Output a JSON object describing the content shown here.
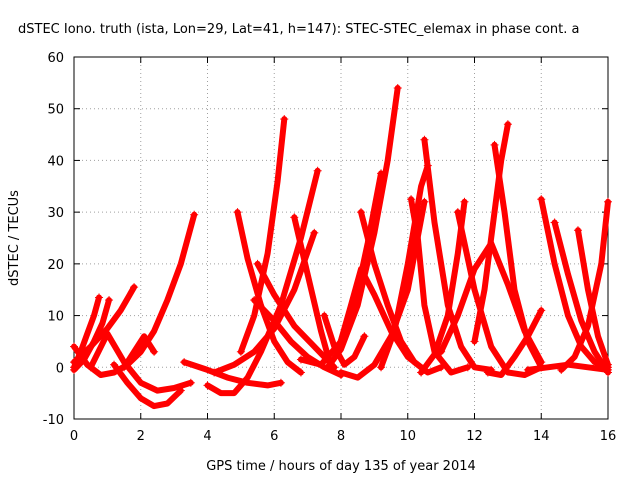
{
  "chart_data": {
    "type": "scatter",
    "title": "dSTEC Iono. truth (ista, Lon=29, Lat=41, h=147): STEC-STEC_elemax in phase cont. a",
    "xlabel": "GPS time / hours of day 135 of year 2014",
    "ylabel": "dSTEC  / TECUs",
    "xlim": [
      0,
      16
    ],
    "ylim": [
      -10,
      60
    ],
    "xticks": [
      "0",
      "2",
      "4",
      "6",
      "8",
      "10",
      "12",
      "14",
      "16"
    ],
    "yticks": [
      "-10",
      "0",
      "10",
      "20",
      "30",
      "40",
      "50",
      "60"
    ],
    "grid": true,
    "marker": "plus",
    "color": "#ff0000",
    "series": [
      {
        "x": [
          0.0,
          0.4,
          0.8,
          1.2,
          1.6,
          2.0,
          2.4,
          2.8,
          3.2,
          3.6
        ],
        "y": [
          4.0,
          0.5,
          -1.5,
          -1.0,
          0.5,
          3.0,
          7.0,
          13.0,
          20.0,
          29.5
        ]
      },
      {
        "x": [
          0.0,
          0.2,
          0.4,
          0.6,
          0.75
        ],
        "y": [
          0.0,
          3.0,
          6.5,
          10.0,
          13.5
        ]
      },
      {
        "x": [
          0.0,
          0.3,
          0.6,
          0.85,
          1.05
        ],
        "y": [
          -0.5,
          1.5,
          5.0,
          8.5,
          13.0
        ]
      },
      {
        "x": [
          0.0,
          0.5,
          1.0,
          1.4,
          1.8
        ],
        "y": [
          1.0,
          4.0,
          7.5,
          11.0,
          15.5
        ]
      },
      {
        "x": [
          0.5,
          1.0,
          1.5,
          2.0,
          2.5,
          3.0,
          3.5
        ],
        "y": [
          0.0,
          6.5,
          1.0,
          -3.0,
          -4.5,
          -4.0,
          -3.0
        ]
      },
      {
        "x": [
          1.2,
          1.6,
          2.0,
          2.4,
          2.8,
          3.2
        ],
        "y": [
          0.5,
          -3.0,
          -6.0,
          -7.5,
          -7.0,
          -4.5
        ]
      },
      {
        "x": [
          1.5,
          1.8,
          2.1,
          2.4
        ],
        "y": [
          0.0,
          3.0,
          6.0,
          3.0
        ]
      },
      {
        "x": [
          3.3,
          4.0,
          4.6,
          5.2,
          5.8,
          6.2
        ],
        "y": [
          1.0,
          -0.5,
          -2.0,
          -3.0,
          -3.5,
          -3.0
        ]
      },
      {
        "x": [
          4.0,
          4.4,
          4.8,
          5.2,
          5.6,
          6.2,
          6.8,
          7.3
        ],
        "y": [
          -3.5,
          -5.0,
          -5.0,
          -2.0,
          3.0,
          12.0,
          25.0,
          38.0
        ]
      },
      {
        "x": [
          4.2,
          4.8,
          5.4,
          6.0,
          6.6,
          7.2
        ],
        "y": [
          -1.0,
          0.5,
          3.0,
          7.5,
          15.0,
          26.0
        ]
      },
      {
        "x": [
          4.9,
          5.2,
          5.6,
          6.0,
          6.4,
          6.8
        ],
        "y": [
          30.0,
          21.0,
          12.0,
          5.0,
          1.0,
          -1.0
        ]
      },
      {
        "x": [
          5.0,
          5.4,
          5.8,
          6.1,
          6.3
        ],
        "y": [
          3.0,
          10.0,
          22.0,
          36.0,
          48.0
        ]
      },
      {
        "x": [
          5.4,
          6.0,
          6.5,
          7.0,
          7.5,
          8.0
        ],
        "y": [
          13.0,
          9.0,
          5.0,
          2.0,
          0.0,
          -1.5
        ]
      },
      {
        "x": [
          5.5,
          6.0,
          6.6,
          7.2,
          7.8
        ],
        "y": [
          20.0,
          14.0,
          8.0,
          4.0,
          0.0
        ]
      },
      {
        "x": [
          6.6,
          7.0,
          7.4,
          7.7
        ],
        "y": [
          29.0,
          18.0,
          7.0,
          0.0
        ]
      },
      {
        "x": [
          7.5,
          7.8,
          8.1,
          8.4,
          8.7
        ],
        "y": [
          10.0,
          4.0,
          0.5,
          2.0,
          6.0
        ]
      },
      {
        "x": [
          6.8,
          7.4,
          8.0,
          8.4,
          8.8,
          9.2
        ],
        "y": [
          1.5,
          0.5,
          5.0,
          12.0,
          24.0,
          37.5
        ]
      },
      {
        "x": [
          7.6,
          8.0,
          8.5,
          9.0,
          9.4,
          9.7
        ],
        "y": [
          0.0,
          3.5,
          12.0,
          26.0,
          40.0,
          54.0
        ]
      },
      {
        "x": [
          7.9,
          8.3,
          8.6,
          9.0,
          9.5,
          10.0,
          10.5
        ],
        "y": [
          3.0,
          12.0,
          19.0,
          14.0,
          7.0,
          2.0,
          -0.5
        ]
      },
      {
        "x": [
          8.0,
          8.5,
          9.0,
          9.5,
          10.0,
          10.5
        ],
        "y": [
          -1.0,
          -2.0,
          0.5,
          6.0,
          15.0,
          32.0
        ]
      },
      {
        "x": [
          8.6,
          9.0,
          9.4,
          9.8,
          10.2,
          10.6,
          11.0
        ],
        "y": [
          30.0,
          20.0,
          12.0,
          5.0,
          1.0,
          -1.0,
          0.0
        ]
      },
      {
        "x": [
          10.1,
          10.3,
          10.5,
          10.8,
          11.3,
          11.8
        ],
        "y": [
          32.5,
          25.0,
          12.0,
          3.0,
          -1.0,
          0.0
        ]
      },
      {
        "x": [
          10.5,
          10.8,
          11.2,
          11.6,
          12.0,
          12.5
        ],
        "y": [
          44.0,
          28.0,
          12.0,
          4.0,
          0.0,
          -0.5
        ]
      },
      {
        "x": [
          9.2,
          9.6,
          10.0,
          10.4,
          10.6
        ],
        "y": [
          0.0,
          7.0,
          20.0,
          35.0,
          39.0
        ]
      },
      {
        "x": [
          10.4,
          10.8,
          11.2,
          11.5,
          11.7
        ],
        "y": [
          -1.0,
          2.5,
          10.0,
          22.0,
          32.0
        ]
      },
      {
        "x": [
          11.5,
          12.0,
          12.5,
          13.0,
          13.5,
          14.0
        ],
        "y": [
          30.0,
          15.0,
          4.0,
          -1.0,
          -1.5,
          0.0
        ]
      },
      {
        "x": [
          11.0,
          11.5,
          12.0,
          12.5,
          13.0,
          13.5,
          14.0
        ],
        "y": [
          3.0,
          10.0,
          19.0,
          24.0,
          16.0,
          7.0,
          1.0
        ]
      },
      {
        "x": [
          12.0,
          12.3,
          12.6,
          12.8,
          13.0
        ],
        "y": [
          5.0,
          15.0,
          30.0,
          40.0,
          47.0
        ]
      },
      {
        "x": [
          12.6,
          12.9,
          13.2,
          13.6,
          14.0
        ],
        "y": [
          43.0,
          30.0,
          15.0,
          5.0,
          0.0
        ]
      },
      {
        "x": [
          12.4,
          12.8,
          13.2,
          13.6,
          14.0
        ],
        "y": [
          -1.0,
          -1.5,
          2.0,
          6.0,
          11.0
        ]
      },
      {
        "x": [
          14.0,
          14.4,
          14.8,
          15.2,
          15.6,
          16.0
        ],
        "y": [
          32.5,
          20.0,
          10.0,
          4.0,
          1.0,
          0.0
        ]
      },
      {
        "x": [
          14.4,
          14.8,
          15.2,
          15.6,
          16.0
        ],
        "y": [
          28.0,
          18.0,
          9.0,
          3.0,
          -1.0
        ]
      },
      {
        "x": [
          15.1,
          15.4,
          15.7,
          16.0
        ],
        "y": [
          26.5,
          15.0,
          6.0,
          0.5
        ]
      },
      {
        "x": [
          14.6,
          15.0,
          15.4,
          15.8,
          16.0
        ],
        "y": [
          -0.5,
          2.0,
          8.0,
          20.0,
          32.0
        ]
      },
      {
        "x": [
          13.6,
          14.2,
          14.8,
          15.4,
          16.0
        ],
        "y": [
          -0.5,
          0.0,
          0.5,
          0.0,
          -0.5
        ]
      }
    ]
  }
}
